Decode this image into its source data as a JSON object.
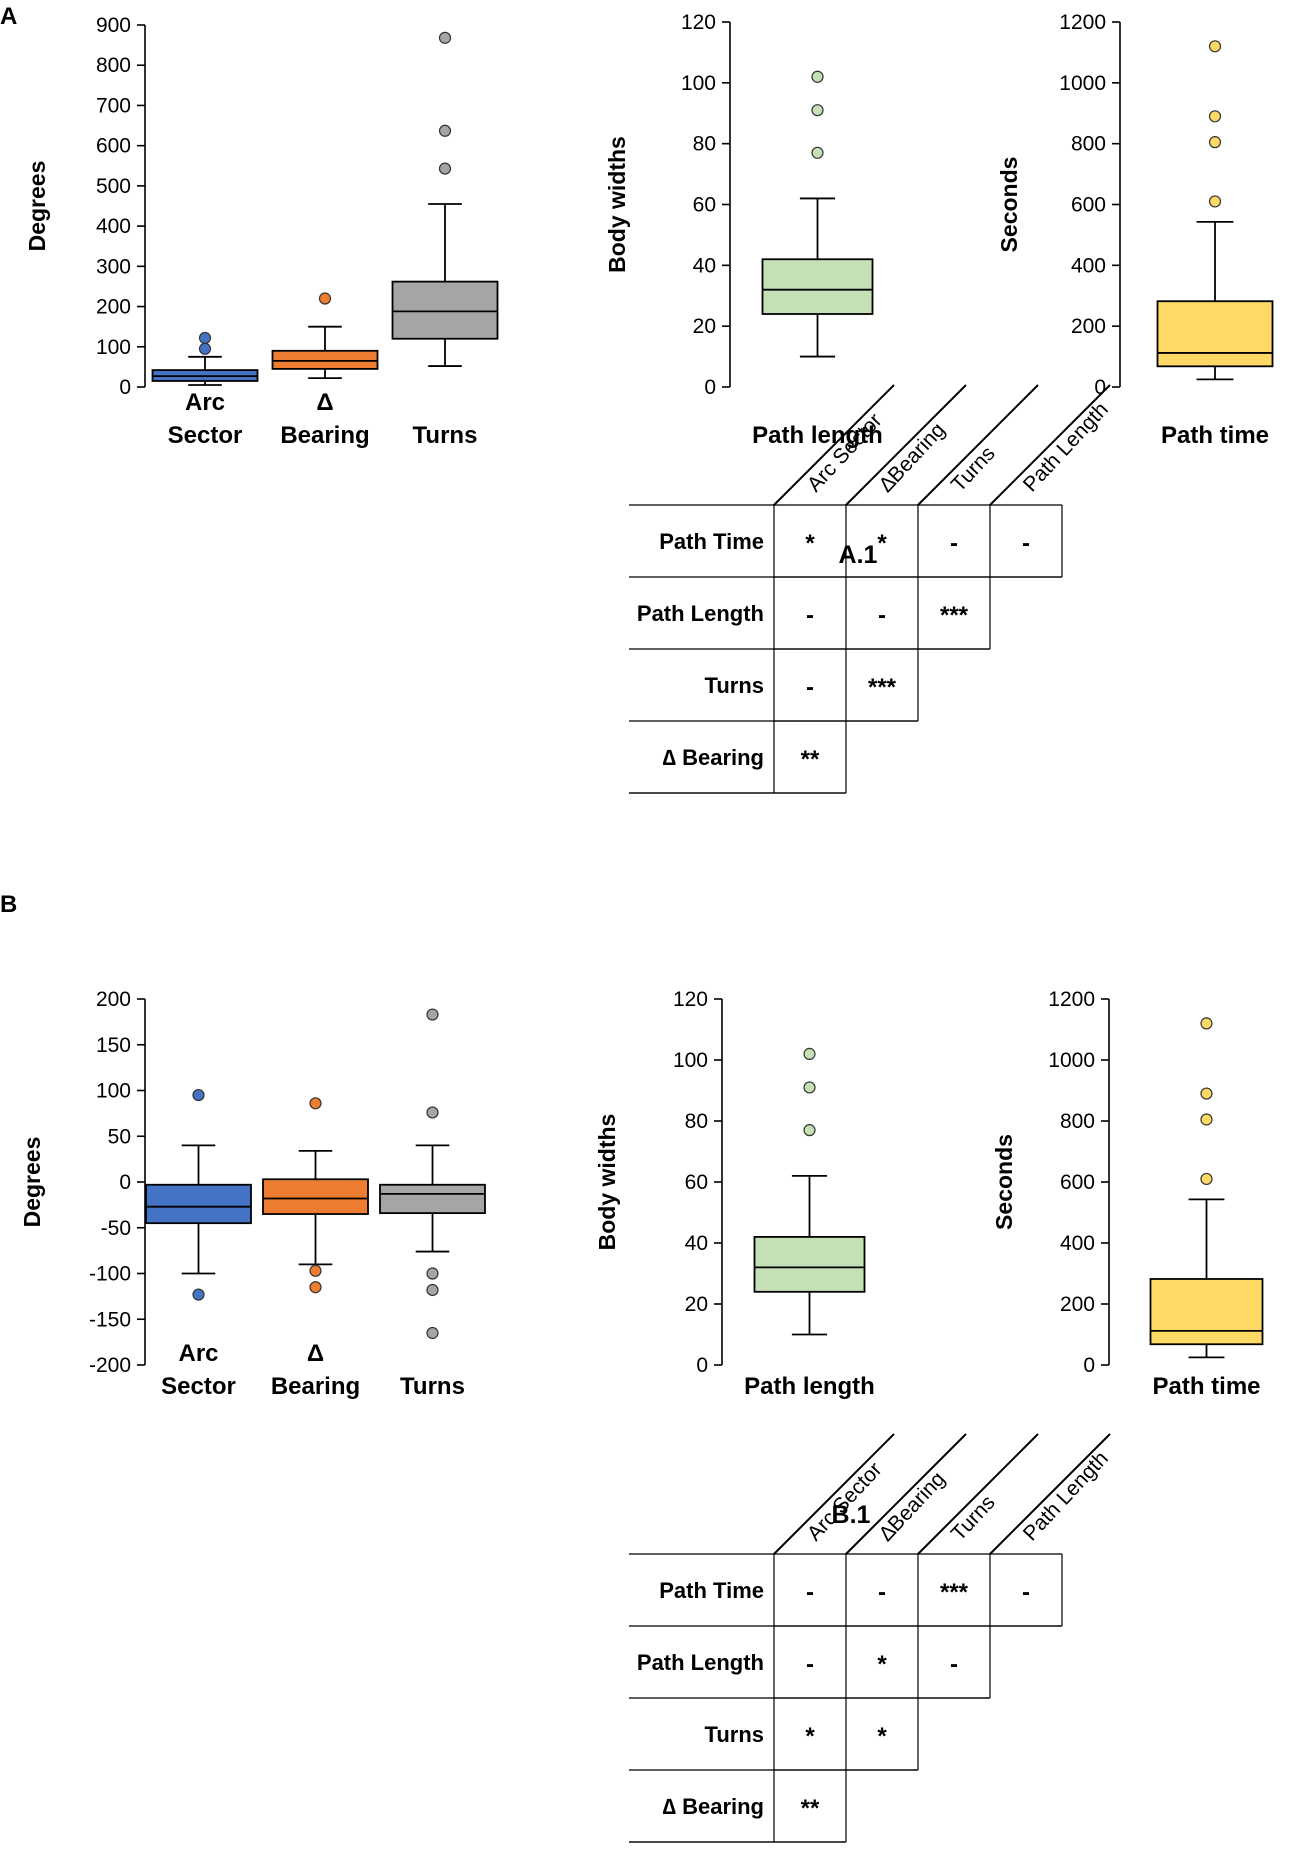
{
  "panels": {
    "a": "A",
    "b": "B"
  },
  "chart_data": [
    {
      "type": "box",
      "panel": "A",
      "ylabel": "Degrees",
      "ylim": [
        0,
        900
      ],
      "yticks": [
        0,
        100,
        200,
        300,
        400,
        500,
        600,
        700,
        800,
        900
      ],
      "groups": [
        {
          "label": [
            "Arc",
            "Sector"
          ],
          "color": "#4472C4",
          "min": 5,
          "q1": 15,
          "median": 27,
          "q3": 42,
          "max": 75,
          "outliers": [
            95,
            122
          ]
        },
        {
          "label": [
            "Δ",
            "Bearing"
          ],
          "color": "#ED7D31",
          "min": 22,
          "q1": 45,
          "median": 65,
          "q3": 90,
          "max": 150,
          "outliers": [
            220
          ]
        },
        {
          "label": [
            "",
            "Turns"
          ],
          "color": "#A5A5A5",
          "min": 52,
          "q1": 120,
          "median": 188,
          "q3": 262,
          "max": 455,
          "outliers": [
            543,
            637,
            868
          ]
        }
      ]
    },
    {
      "type": "box",
      "panel": "A",
      "ylabel": "Body widths",
      "ylim": [
        0,
        120
      ],
      "yticks": [
        0,
        20,
        40,
        60,
        80,
        100,
        120
      ],
      "groups": [
        {
          "label": [
            "",
            "Path length"
          ],
          "color": "#C5E0B4",
          "min": 10,
          "q1": 24,
          "median": 32,
          "q3": 42,
          "max": 62,
          "outliers": [
            77,
            91,
            102
          ]
        }
      ]
    },
    {
      "type": "box",
      "panel": "A",
      "ylabel": "Seconds",
      "ylim": [
        0,
        1200
      ],
      "yticks": [
        0,
        200,
        400,
        600,
        800,
        1000,
        1200
      ],
      "groups": [
        {
          "label": [
            "",
            "Path time"
          ],
          "color": "#FFD966",
          "min": 25,
          "q1": 68,
          "median": 112,
          "q3": 282,
          "max": 543,
          "outliers": [
            610,
            805,
            890,
            1120
          ]
        }
      ]
    },
    {
      "type": "box",
      "panel": "B",
      "ylabel": "Degrees",
      "ylim": [
        -200,
        200
      ],
      "yticks": [
        -200,
        -150,
        -100,
        -50,
        0,
        50,
        100,
        150,
        200
      ],
      "groups": [
        {
          "label": [
            "Arc",
            "Sector"
          ],
          "color": "#4472C4",
          "min": -100,
          "q1": -45,
          "median": -27,
          "q3": -3,
          "max": 40,
          "outliers": [
            95,
            -123
          ]
        },
        {
          "label": [
            "Δ",
            "Bearing"
          ],
          "color": "#ED7D31",
          "min": -90,
          "q1": -35,
          "median": -18,
          "q3": 3,
          "max": 34,
          "outliers": [
            86,
            -97,
            -115
          ]
        },
        {
          "label": [
            "",
            "Turns"
          ],
          "color": "#A5A5A5",
          "min": -76,
          "q1": -34,
          "median": -13,
          "q3": -3,
          "max": 40,
          "outliers": [
            183,
            76,
            -100,
            -118,
            -165
          ]
        }
      ]
    },
    {
      "type": "box",
      "panel": "B",
      "ylabel": "Body widths",
      "ylim": [
        0,
        120
      ],
      "yticks": [
        0,
        20,
        40,
        60,
        80,
        100,
        120
      ],
      "groups": [
        {
          "label": [
            "",
            "Path length"
          ],
          "color": "#C5E0B4",
          "min": 10,
          "q1": 24,
          "median": 32,
          "q3": 42,
          "max": 62,
          "outliers": [
            77,
            91,
            102
          ]
        }
      ]
    },
    {
      "type": "box",
      "panel": "B",
      "ylabel": "Seconds",
      "ylim": [
        0,
        1200
      ],
      "yticks": [
        0,
        200,
        400,
        600,
        800,
        1000,
        1200
      ],
      "groups": [
        {
          "label": [
            "",
            "Path time"
          ],
          "color": "#FFD966",
          "min": 25,
          "q1": 68,
          "median": 112,
          "q3": 282,
          "max": 543,
          "outliers": [
            610,
            805,
            890,
            1120
          ]
        }
      ]
    },
    {
      "type": "table",
      "title": "A.1",
      "columns": [
        "Arc Sector",
        "∆Bearing",
        "Turns",
        "Path Length"
      ],
      "rows": [
        {
          "label": "Path Time",
          "cells": [
            "*",
            "*",
            "-",
            "-"
          ]
        },
        {
          "label": "Path Length",
          "cells": [
            "-",
            "-",
            "***"
          ]
        },
        {
          "label": "Turns",
          "cells": [
            "-",
            "***"
          ]
        },
        {
          "label": "∆ Bearing",
          "cells": [
            "**"
          ]
        }
      ]
    },
    {
      "type": "table",
      "title": "B.1",
      "columns": [
        "Arc Sector",
        "∆Bearing",
        "Turns",
        "Path Length"
      ],
      "rows": [
        {
          "label": "Path Time",
          "cells": [
            "-",
            "-",
            "***",
            "-"
          ]
        },
        {
          "label": "Path Length",
          "cells": [
            "-",
            "*",
            "-"
          ]
        },
        {
          "label": "Turns",
          "cells": [
            "*",
            "*"
          ]
        },
        {
          "label": "∆ Bearing",
          "cells": [
            "**"
          ]
        }
      ]
    }
  ]
}
